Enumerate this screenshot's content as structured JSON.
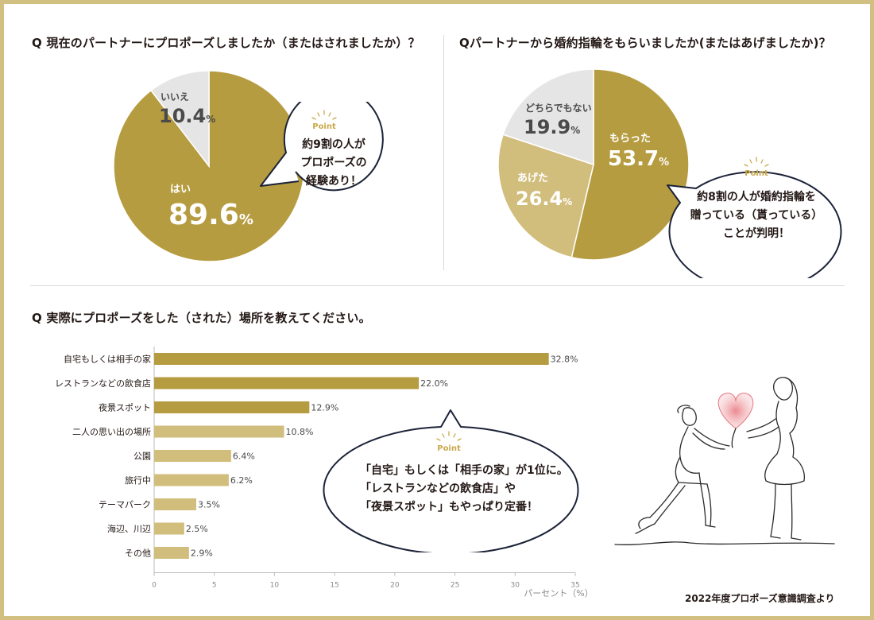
{
  "colors": {
    "frame": "#d2c083",
    "gold_dark": "#b69c40",
    "gold_light": "#d2be7c",
    "gray": "#e5e5e5",
    "callout_border": "#1b2238",
    "point_accent": "#caa84a",
    "text": "#231815"
  },
  "q1": {
    "title": "Q 現在のパートナーにプロポーズしましたか（またはされましたか）？",
    "callout": {
      "point": "Point",
      "lines": [
        "約9割の人が",
        "プロポーズの",
        "経験あり！"
      ]
    }
  },
  "q2": {
    "title": "Qパートナーから婚約指輪をもらいましたか(またはあげましたか)？",
    "callout": {
      "point": "Point",
      "lines": [
        "約8割の人が婚約指輪を",
        "贈っている（貰っている）",
        "ことが判明！"
      ]
    }
  },
  "q3": {
    "title": "Q 実際にプロポーズをした（された）場所を教えてください。",
    "callout": {
      "point": "Point",
      "lines": [
        "「自宅」もしくは「相手の家」が1位に。",
        "「レストランなどの飲食店」や",
        "「夜景スポット」もやっぱり定番！"
      ]
    }
  },
  "footnote": "2022年度プロポーズ意識調査より",
  "chart_data": [
    {
      "type": "pie",
      "labels": [
        "はい",
        "いいえ"
      ],
      "values": [
        89.6,
        10.4
      ],
      "value_labels": [
        "89.6",
        "10.4"
      ],
      "unit": "%",
      "colors": [
        "#b69c40",
        "#e5e5e5"
      ]
    },
    {
      "type": "pie",
      "labels": [
        "もらった",
        "あげた",
        "どちらでもない"
      ],
      "values": [
        53.7,
        26.4,
        19.9
      ],
      "value_labels": [
        "53.7",
        "26.4",
        "19.9"
      ],
      "unit": "%",
      "colors": [
        "#b69c40",
        "#d2be7c",
        "#e5e5e5"
      ]
    },
    {
      "type": "bar",
      "orientation": "horizontal",
      "categories": [
        "自宅もしくは相手の家",
        "レストランなどの飲食店",
        "夜景スポット",
        "二人の思い出の場所",
        "公園",
        "旅行中",
        "テーマパーク",
        "海辺、川辺",
        "その他"
      ],
      "values": [
        32.8,
        22.0,
        12.9,
        10.8,
        6.4,
        6.2,
        3.5,
        2.5,
        2.9
      ],
      "value_labels": [
        "32.8%",
        "22.0%",
        "12.9%",
        "10.8%",
        "6.4%",
        "6.2%",
        "3.5%",
        "2.5%",
        "2.9%"
      ],
      "bar_colors": [
        "#b69c40",
        "#b69c40",
        "#b69c40",
        "#d2be7c",
        "#d2be7c",
        "#d2be7c",
        "#d2be7c",
        "#d2be7c",
        "#d2be7c"
      ],
      "xlabel": "パーセント（%）",
      "xlim": [
        0,
        35
      ],
      "xticks": [
        0,
        5,
        10,
        15,
        20,
        25,
        30,
        35
      ]
    }
  ]
}
